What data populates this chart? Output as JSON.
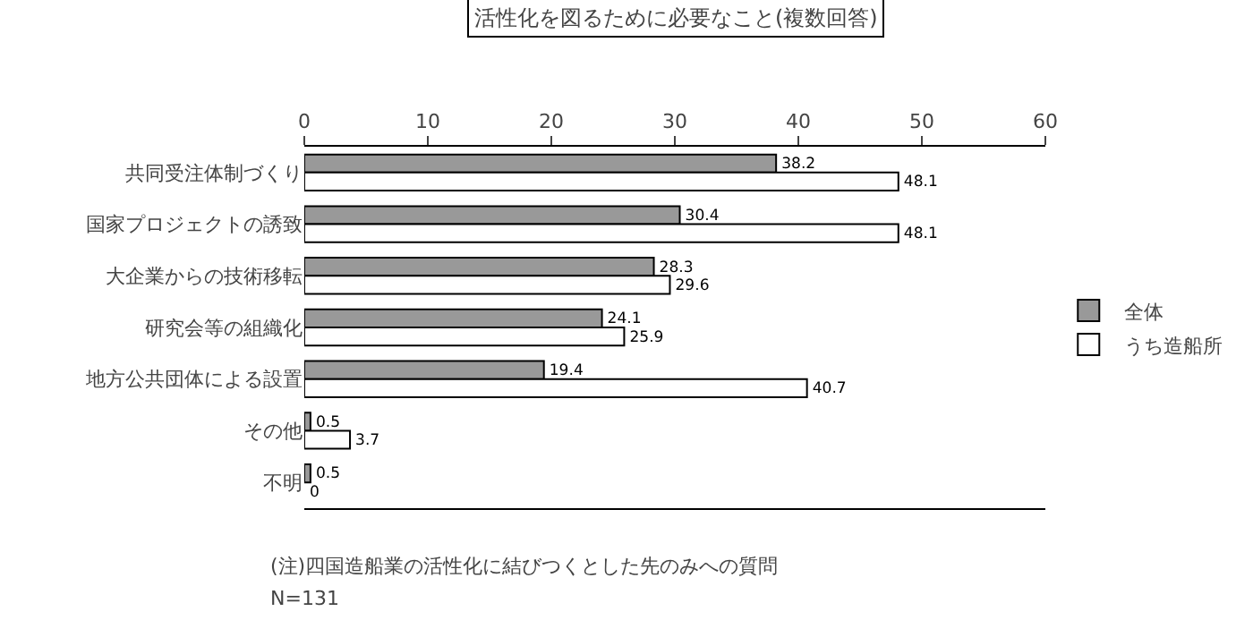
{
  "chart_data": {
    "type": "bar",
    "orientation": "horizontal",
    "title": "活性化を図るために必要なこと(複数回答)",
    "categories": [
      "共同受注体制づくり",
      "国家プロジェクトの誘致",
      "大企業からの技術移転",
      "研究会等の組織化",
      "地方公共団体による設置",
      "その他",
      "不明"
    ],
    "series": [
      {
        "name": "全体",
        "color": "#999999",
        "values": [
          38.2,
          30.4,
          28.3,
          24.1,
          19.4,
          0.5,
          0.5
        ]
      },
      {
        "name": "うち造船所",
        "color": "#ffffff",
        "values": [
          48.1,
          48.1,
          29.6,
          25.9,
          40.7,
          3.7,
          0
        ]
      }
    ],
    "xlim": [
      0,
      60
    ],
    "xticks": [
      0,
      10,
      20,
      30,
      40,
      50,
      60
    ],
    "grid": false,
    "data_labels": true,
    "legend": "right",
    "annotations": [
      "(注)四国造船業の活性化に結びつくとした先のみへの質問",
      "N=131"
    ]
  }
}
